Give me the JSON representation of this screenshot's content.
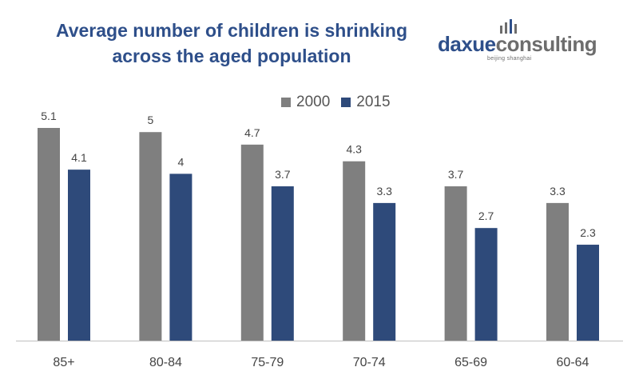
{
  "title_line1": "Average number of children is shrinking",
  "title_line2": "across the aged population",
  "logo": {
    "word_a": "daxue",
    "word_b": "consulting",
    "sub": "beijing shanghai"
  },
  "colors": {
    "title": "#2e4f8a",
    "series_2000": "#7f7f7f",
    "series_2015": "#2e4a7a",
    "axis": "#bfbfbf"
  },
  "chart_data": {
    "type": "bar",
    "title": "Average number of children is shrinking across the aged population",
    "categories": [
      "85+",
      "80-84",
      "75-79",
      "70-74",
      "65-69",
      "60-64"
    ],
    "series": [
      {
        "name": "2000",
        "values": [
          5.1,
          5,
          4.7,
          4.3,
          3.7,
          3.3
        ]
      },
      {
        "name": "2015",
        "values": [
          4.1,
          4,
          3.7,
          3.3,
          2.7,
          2.3
        ]
      }
    ],
    "ylim": [
      0,
      5.1
    ],
    "grid": false,
    "legend": "top-right"
  }
}
